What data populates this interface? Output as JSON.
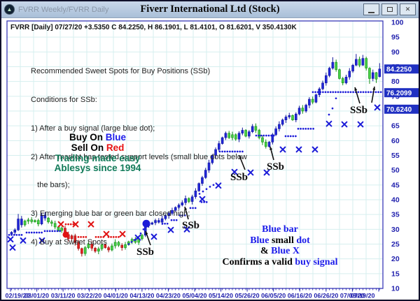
{
  "window": {
    "title_left": "FVRR Weekly/FVRR Daily",
    "title_center": "Fiverr International Ltd (Stock)",
    "app_icon_glyph": "▲",
    "buttons": {
      "minimize": "minimize",
      "restore": "restore",
      "close_glyph": "✕"
    }
  },
  "header_line": "FVRR [Daily] 07/27/20  +3.5350 C 84.2250, H 86.1901, L 81.4101, O 81.6201, V 350.4130K",
  "annotation": {
    "line1": "Recommended Sweet Spots for Buy Positions (SSb)",
    "line2": "Conditions for SSb:",
    "line3": "1) After a buy signal (large blue dot);",
    "line4": "2) After market has tested support levels (small blue dots below",
    "line5": "   the bars);",
    "line6": "3) Emerging blue bar or green bar closed high;",
    "line7": "4) Buy at Sweet Spots"
  },
  "slogan": {
    "l1a": "Buy On ",
    "l1b": "Blue",
    "l2a": "Sell On ",
    "l2b": "Red",
    "l3": "Trading made easy",
    "l4": "Ablesys since 1994"
  },
  "legend": {
    "l1": "Blue bar",
    "l2a": "Blue ",
    "l2b": "small ",
    "l2c": "dot",
    "l3a": "& ",
    "l3b": "Blue X",
    "l4a": "Confirms a valid ",
    "l4b": "buy signal"
  },
  "colors": {
    "bar_blue": "#2026d8",
    "bar_blue_edge": "#14189e",
    "bar_green": "#46cf46",
    "bar_green_edge": "#159015",
    "bar_red": "#e32020",
    "bar_red_edge": "#a01010",
    "mark_blue": "#1b1bd8",
    "mark_red": "#e01212",
    "axis_text": "#2222ae",
    "grid": "#d6efef",
    "chart_border": "#3a3ab8",
    "price_tag_bg": "#2030c2"
  },
  "chart_data": {
    "type": "candlestick",
    "symbol": "FVRR Daily",
    "title": "Fiverr International Ltd (Stock)",
    "ylim": [
      10,
      100
    ],
    "y_ticks": [
      100,
      95,
      90,
      85,
      80,
      75,
      70,
      65,
      60,
      55,
      50,
      45,
      40,
      35,
      30,
      25,
      20,
      15,
      10
    ],
    "x_tick_dates": [
      "02/19/20",
      "03/01/20",
      "03/11/20",
      "03/22/20",
      "04/01/20",
      "04/13/20",
      "04/23/20",
      "05/04/20",
      "05/14/20",
      "05/26/20",
      "06/05/20",
      "06/16/20",
      "06/26/20",
      "07/08/20",
      "07/19/20"
    ],
    "price_tags": [
      {
        "label": "84.2250",
        "value": 84.225
      },
      {
        "label": "76.2099",
        "value": 76.21
      },
      {
        "label": "70.6240",
        "value": 70.624
      }
    ],
    "candles": [
      [
        29.0,
        "b"
      ],
      [
        29.8,
        "b"
      ],
      [
        33.5,
        "b"
      ],
      [
        31.5,
        "b"
      ],
      [
        32.8,
        "g"
      ],
      [
        33.2,
        "g"
      ],
      [
        32.6,
        "g"
      ],
      [
        33.0,
        "g"
      ],
      [
        31.8,
        "g"
      ],
      [
        34.8,
        "b"
      ],
      [
        33.8,
        "b"
      ],
      [
        32.5,
        "g"
      ],
      [
        32.0,
        "g"
      ],
      [
        30.8,
        "g"
      ],
      [
        29.6,
        "g"
      ],
      [
        30.4,
        "g"
      ],
      [
        28.2,
        "r"
      ],
      [
        26.8,
        "r"
      ],
      [
        27.8,
        "r"
      ],
      [
        25.5,
        "r"
      ],
      [
        23.5,
        "r"
      ],
      [
        21.8,
        "r"
      ],
      [
        23.8,
        "g"
      ],
      [
        25.0,
        "g"
      ],
      [
        23.6,
        "r"
      ],
      [
        22.6,
        "r"
      ],
      [
        23.4,
        "g"
      ],
      [
        24.8,
        "g"
      ],
      [
        23.8,
        "r"
      ],
      [
        23.0,
        "r"
      ],
      [
        24.4,
        "g"
      ],
      [
        25.6,
        "g"
      ],
      [
        24.6,
        "g"
      ],
      [
        23.8,
        "r"
      ],
      [
        24.8,
        "g"
      ],
      [
        25.8,
        "g"
      ],
      [
        26.6,
        "g"
      ],
      [
        25.6,
        "g"
      ],
      [
        26.8,
        "g"
      ],
      [
        28.0,
        "g"
      ],
      [
        31.2,
        "b"
      ],
      [
        31.8,
        "b"
      ],
      [
        32.2,
        "b"
      ],
      [
        33.0,
        "b"
      ],
      [
        32.4,
        "b"
      ],
      [
        33.6,
        "b"
      ],
      [
        34.6,
        "b"
      ],
      [
        35.4,
        "b"
      ],
      [
        36.4,
        "b"
      ],
      [
        37.4,
        "b"
      ],
      [
        38.2,
        "b"
      ],
      [
        39.0,
        "b"
      ],
      [
        40.4,
        "b"
      ],
      [
        39.4,
        "g"
      ],
      [
        41.0,
        "b"
      ],
      [
        43.0,
        "b"
      ],
      [
        45.5,
        "b"
      ],
      [
        47.5,
        "b"
      ],
      [
        50.0,
        "b"
      ],
      [
        52.5,
        "b"
      ],
      [
        55.0,
        "b"
      ],
      [
        57.0,
        "b"
      ],
      [
        59.0,
        "b"
      ],
      [
        61.0,
        "b"
      ],
      [
        62.5,
        "b"
      ],
      [
        61.0,
        "g"
      ],
      [
        62.0,
        "g"
      ],
      [
        60.5,
        "g"
      ],
      [
        62.5,
        "b"
      ],
      [
        63.5,
        "b"
      ],
      [
        61.5,
        "g"
      ],
      [
        63.0,
        "b"
      ],
      [
        64.8,
        "b"
      ],
      [
        63.5,
        "g"
      ],
      [
        61.0,
        "g"
      ],
      [
        59.5,
        "g"
      ],
      [
        58.0,
        "g"
      ],
      [
        59.5,
        "b"
      ],
      [
        62.0,
        "b"
      ],
      [
        64.0,
        "b"
      ],
      [
        65.5,
        "b"
      ],
      [
        67.0,
        "b"
      ],
      [
        68.0,
        "b"
      ],
      [
        68.5,
        "b"
      ],
      [
        67.0,
        "g"
      ],
      [
        69.0,
        "b"
      ],
      [
        71.0,
        "b"
      ],
      [
        70.0,
        "g"
      ],
      [
        72.0,
        "b"
      ],
      [
        74.0,
        "b"
      ],
      [
        73.0,
        "g"
      ],
      [
        75.5,
        "b"
      ],
      [
        77.5,
        "b"
      ],
      [
        79.5,
        "b"
      ],
      [
        82.0,
        "b"
      ],
      [
        84.5,
        "b"
      ],
      [
        86.5,
        "b"
      ],
      [
        84.0,
        "g"
      ],
      [
        81.0,
        "g"
      ],
      [
        79.5,
        "g"
      ],
      [
        81.5,
        "b"
      ],
      [
        83.5,
        "b"
      ],
      [
        85.5,
        "b"
      ],
      [
        87.5,
        "b"
      ],
      [
        85.5,
        "g"
      ],
      [
        87.8,
        "b"
      ],
      [
        84.5,
        "g"
      ],
      [
        81.0,
        "g"
      ],
      [
        83.0,
        "b"
      ],
      [
        80.8,
        "g"
      ],
      [
        84.2,
        "b"
      ]
    ],
    "ohlc_overrides": {
      "2": [
        29.8,
        35.2,
        29.4,
        33.5
      ],
      "9": [
        31.8,
        35.4,
        31.4,
        34.8
      ],
      "21": [
        23.5,
        23.8,
        20.8,
        21.8
      ],
      "40": [
        28.0,
        31.9,
        27.4,
        31.2
      ],
      "96": [
        84.5,
        88.2,
        84.0,
        86.5
      ],
      "103": [
        85.5,
        89.3,
        85.2,
        87.5
      ],
      "105": [
        85.5,
        89.0,
        85.3,
        87.8
      ],
      "107": [
        84.5,
        84.8,
        79.2,
        81.0
      ],
      "109": [
        83.0,
        83.2,
        79.5,
        80.8
      ],
      "110": [
        81.62,
        86.19,
        81.41,
        84.23
      ]
    },
    "buy_signal_dot": {
      "x": 207,
      "value": 31.9
    },
    "sell_signal_dot": {
      "x": 92,
      "value": 28.2
    },
    "blue_dot_runs": [
      [
        28.1,
        11,
        32
      ],
      [
        28.9,
        36,
        58
      ],
      [
        29.4,
        62,
        85
      ],
      [
        31.9,
        230,
        238
      ],
      [
        33.1,
        243,
        251
      ],
      [
        34.7,
        255,
        263
      ],
      [
        37.2,
        270,
        280
      ],
      [
        39.2,
        286,
        296
      ],
      [
        56.3,
        312,
        348
      ],
      [
        61.7,
        364,
        390
      ],
      [
        61.5,
        406,
        422
      ],
      [
        64.0,
        424,
        447
      ],
      [
        76.4,
        445,
        543
      ]
    ],
    "blue_dots": [
      [
        182,
        25.0
      ],
      [
        186,
        25.7
      ],
      [
        190,
        26.4
      ],
      [
        194,
        27.1
      ],
      [
        199,
        28.6
      ],
      [
        203,
        30.0
      ],
      [
        283,
        42.0
      ],
      [
        288,
        42.8
      ],
      [
        293,
        43.6
      ],
      [
        298,
        44.4
      ],
      [
        303,
        45.0
      ],
      [
        468,
        68.8
      ],
      [
        473,
        70.9
      ],
      [
        478,
        74.3
      ]
    ],
    "red_dot_runs": [
      [
        31.7,
        92,
        103
      ],
      [
        27.4,
        110,
        122
      ],
      [
        27.4,
        135,
        147
      ],
      [
        27.4,
        153,
        168
      ]
    ],
    "blue_x_marks": [
      [
        13,
        26.6
      ],
      [
        16,
        23.8
      ],
      [
        31,
        26.2
      ],
      [
        58,
        26.2
      ],
      [
        195,
        27.2
      ],
      [
        218,
        27.5
      ],
      [
        242,
        29.8
      ],
      [
        265,
        30.0
      ],
      [
        287,
        40.2
      ],
      [
        310,
        44.8
      ],
      [
        333,
        49.4
      ],
      [
        356,
        49.2
      ],
      [
        379,
        49.2
      ],
      [
        402,
        57.0
      ],
      [
        425,
        57.0
      ],
      [
        448,
        57.0
      ],
      [
        468,
        65.7
      ],
      [
        490,
        65.5
      ],
      [
        513,
        65.5
      ],
      [
        537,
        71.2
      ]
    ],
    "red_x_marks": [
      [
        85,
        31.7
      ],
      [
        106,
        31.7
      ],
      [
        128,
        31.7
      ],
      [
        150,
        28.4
      ],
      [
        173,
        28.4
      ]
    ],
    "ssb_label": "SSb",
    "ssb_annotations": [
      {
        "x": 193,
        "y": 363,
        "arrows": [
          [
            213,
            349,
            206,
            329
          ]
        ]
      },
      {
        "x": 258,
        "y": 325,
        "arrows": [
          [
            267,
            312,
            262,
            294
          ]
        ]
      },
      {
        "x": 327,
        "y": 256,
        "arrows": [
          [
            348,
            241,
            340,
            221
          ]
        ]
      },
      {
        "x": 379,
        "y": 241,
        "arrows": [
          [
            389,
            227,
            384,
            208
          ]
        ]
      },
      {
        "x": 498,
        "y": 160,
        "arrows": [
          [
            512,
            146,
            505,
            123
          ],
          [
            529,
            145,
            533,
            122
          ]
        ]
      }
    ]
  }
}
